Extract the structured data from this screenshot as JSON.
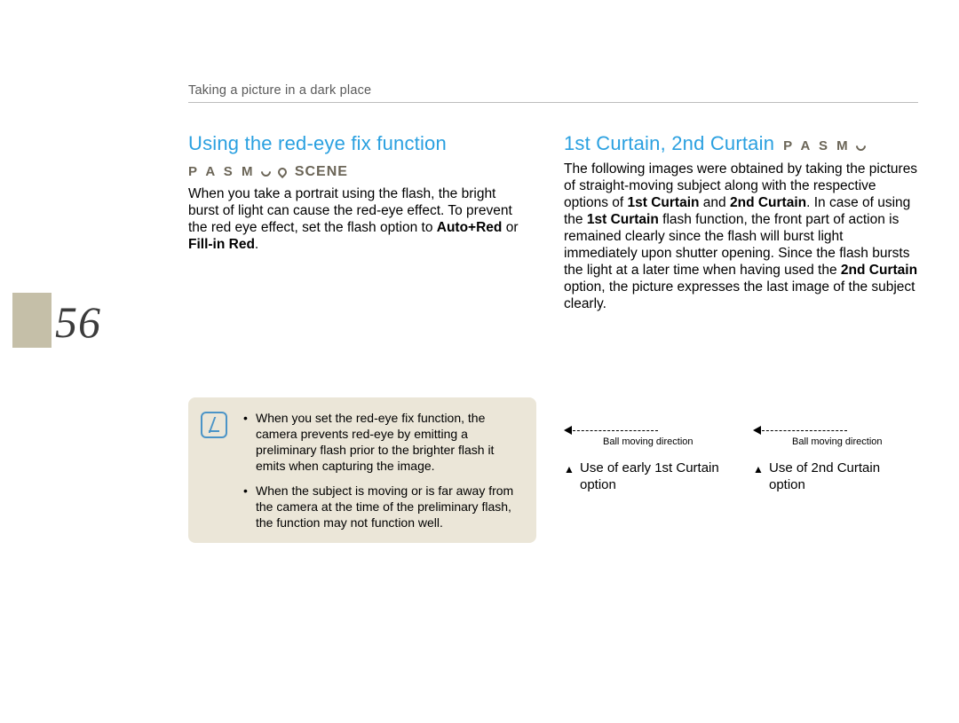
{
  "header": {
    "breadcrumb": "Taking a picture in a dark place"
  },
  "page_number": "56",
  "colors": {
    "heading_blue": "#2aa0e0",
    "mode_text": "#6b6557",
    "note_bg": "#ebe6d8",
    "note_icon": "#4b94c7",
    "page_tab": "#c5bfa8",
    "rule": "#bcbcbc",
    "breadcrumb_text": "#5a5a5a"
  },
  "left": {
    "heading": "Using the red-eye fix function",
    "mode_strip": {
      "letters": "P A S M",
      "scene": "SCENE"
    },
    "para_pre": "When you take a portrait using the flash, the bright burst of light can cause the red-eye effect. To prevent the red eye effect, set the flash option to ",
    "bold1": "Auto+Red",
    "mid": " or ",
    "bold2": "Fill-in Red",
    "tail": "."
  },
  "note": {
    "items": [
      "When you set the red-eye fix function, the camera prevents red-eye by emitting a preliminary flash prior to the brighter flash it emits when capturing the image.",
      "When the subject is moving or is far away from the camera at the time of the preliminary flash, the function may not function well."
    ]
  },
  "right": {
    "heading": "1st Curtain, 2nd Curtain",
    "mode_strip": {
      "letters": "P A S M"
    },
    "p1": "The following images were obtained by taking the pictures of straight-moving subject along with the respective options of ",
    "b1": "1st Curtain",
    "p2": " and ",
    "b2": "2nd Curtain",
    "p3": ". In case of using the ",
    "b3": "1st Curtain",
    "p4": " flash function, the front part of action is remained clearly since the flash will burst light immediately upon shutter opening. Since the flash bursts the light at a later time when having used the ",
    "b4": "2nd Curtain",
    "p5": " option, the picture expresses the last image of the subject clearly."
  },
  "figures": {
    "arrow_caption": "Ball moving direction",
    "cap1": "Use of early 1st Curtain option",
    "cap2": "Use of 2nd Curtain option"
  }
}
